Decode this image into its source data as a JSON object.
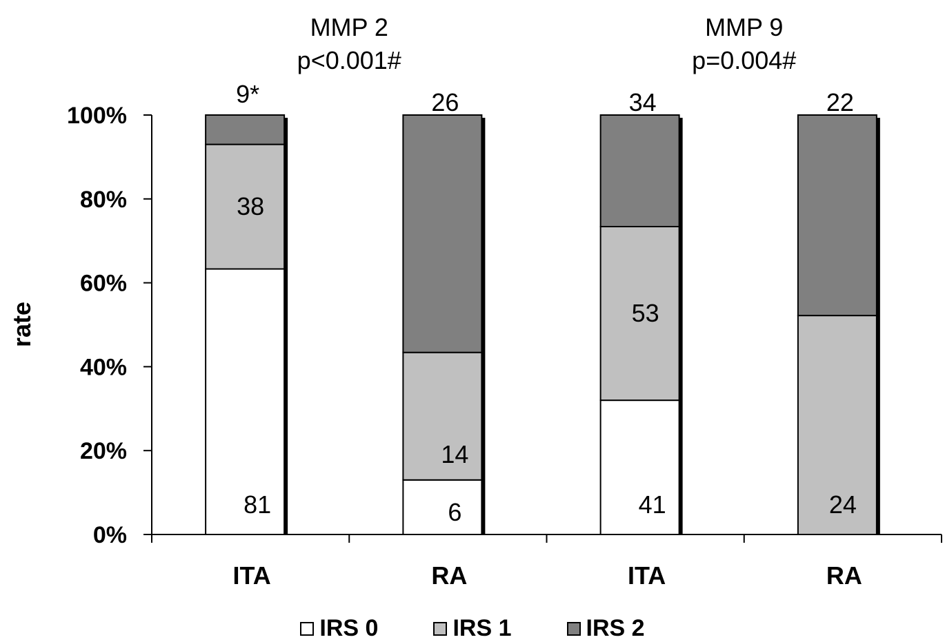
{
  "chart_data": {
    "type": "bar",
    "stacked": true,
    "normalized": true,
    "ylabel": "rate",
    "yticks": [
      "0%",
      "20%",
      "40%",
      "60%",
      "80%",
      "100%"
    ],
    "ylim": [
      0,
      100
    ],
    "categories": [
      "ITA",
      "RA",
      "ITA",
      "RA"
    ],
    "groups": [
      {
        "label": "MMP 2",
        "pvalue": "p<0.001#",
        "categories": [
          0,
          1
        ]
      },
      {
        "label": "MMP 9",
        "pvalue": "p=0.004#",
        "categories": [
          2,
          3
        ]
      }
    ],
    "series": [
      {
        "name": "IRS 0",
        "color": "#ffffff",
        "percent": [
          63.3,
          13.0,
          32.0,
          0
        ],
        "labels": [
          "81",
          "6",
          "41",
          ""
        ]
      },
      {
        "name": "IRS 1",
        "color": "#c0c0c0",
        "percent": [
          29.7,
          30.4,
          41.4,
          52.2
        ],
        "labels": [
          "38",
          "14",
          "53",
          "24"
        ]
      },
      {
        "name": "IRS 2",
        "color": "#808080",
        "percent": [
          7.0,
          56.6,
          26.6,
          47.8
        ],
        "labels": [
          "9*",
          "26",
          "34",
          "22"
        ]
      }
    ],
    "legend_position": "bottom"
  }
}
